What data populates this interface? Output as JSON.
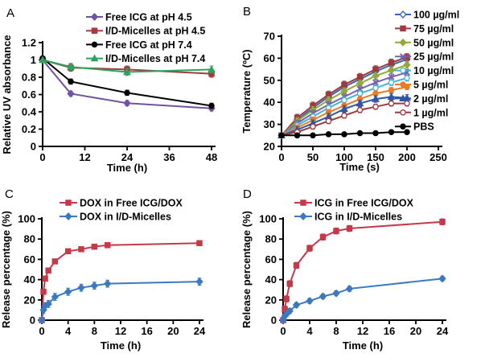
{
  "figure": {
    "background": "#ffffff",
    "panel_letters": [
      "A",
      "B",
      "C",
      "D"
    ]
  },
  "chart_data": [
    {
      "id": "A",
      "panel_letter": "A",
      "type": "line",
      "title": "",
      "xlabel": "Time (h)",
      "ylabel": "Relative UV absorbance",
      "xlim": [
        0,
        48
      ],
      "ylim": [
        0,
        1.2
      ],
      "xticks": [
        0,
        12,
        24,
        36,
        48
      ],
      "yticks": [
        0,
        0.2,
        0.4,
        0.6,
        0.8,
        1,
        1.2
      ],
      "grid": false,
      "legend_position": "top-right-inside",
      "x": [
        0,
        8,
        24,
        48
      ],
      "series": [
        {
          "name": "Free ICG at pH 4.5",
          "color": "#7252a3",
          "marker": "diamond",
          "open": false,
          "values": [
            1.0,
            0.61,
            0.5,
            0.44
          ],
          "error": 0.03
        },
        {
          "name": "I/D-Micelles at pH 4.5",
          "color": "#a23b40",
          "marker": "square",
          "open": false,
          "values": [
            1.0,
            0.91,
            0.89,
            0.84
          ],
          "error": 0.04
        },
        {
          "name": "Free ICG at pH 7.4",
          "color": "#000000",
          "marker": "circle",
          "open": false,
          "values": [
            1.02,
            0.75,
            0.62,
            0.47
          ],
          "error": 0.03
        },
        {
          "name": "I/D-Micelles at pH 7.4",
          "color": "#2ca25f",
          "marker": "triangle",
          "open": false,
          "values": [
            1.0,
            0.92,
            0.86,
            0.89
          ],
          "error": 0.04
        }
      ]
    },
    {
      "id": "B",
      "panel_letter": "B",
      "type": "line",
      "title": "",
      "xlabel": "Time (s)",
      "ylabel": "Temperature (ºC)",
      "xlim": [
        0,
        250
      ],
      "ylim": [
        20,
        70
      ],
      "xticks": [
        0,
        50,
        100,
        150,
        200,
        250
      ],
      "yticks": [
        20,
        30,
        40,
        50,
        60,
        70
      ],
      "grid": false,
      "legend_position": "right-outside",
      "x": [
        0,
        25,
        50,
        75,
        100,
        125,
        150,
        175,
        200
      ],
      "series": [
        {
          "name": "100 µg/ml",
          "color": "#3a67b1",
          "marker": "diamond",
          "open": true,
          "values": [
            25,
            32,
            37.5,
            42.5,
            47,
            50.5,
            54,
            57,
            59.5
          ],
          "error": 1.5
        },
        {
          "name": "75 µg/ml",
          "color": "#9d3a3e",
          "marker": "square",
          "open": false,
          "values": [
            25,
            33,
            38.5,
            43.5,
            48,
            51.5,
            55,
            58,
            60.5
          ],
          "error": 1.6
        },
        {
          "name": "50 µg/ml",
          "color": "#8fa93c",
          "marker": "diamond",
          "open": false,
          "values": [
            25,
            31.5,
            36.5,
            41,
            45,
            48.5,
            52,
            54.5,
            57
          ],
          "error": 1.6
        },
        {
          "name": "25 µg/ml",
          "color": "#7563a9",
          "marker": "x",
          "open": false,
          "values": [
            25,
            30.5,
            35,
            39,
            42.5,
            46,
            49,
            51.5,
            53.5
          ],
          "error": 1.4
        },
        {
          "name": "10 µg/ml",
          "color": "#47b1d7",
          "marker": "circle",
          "open": true,
          "values": [
            25,
            29.5,
            33.5,
            37.5,
            41,
            44,
            46.5,
            49,
            51
          ],
          "error": 1.4
        },
        {
          "name": "5 µg/ml",
          "color": "#ea7c27",
          "marker": "circle",
          "open": false,
          "values": [
            25,
            28.5,
            32,
            35.5,
            38.5,
            41.5,
            44,
            45.5,
            47
          ],
          "error": 1.3
        },
        {
          "name": "2 µg/ml",
          "color": "#2e56a6",
          "marker": "triangle",
          "open": false,
          "values": [
            25,
            27.5,
            30.5,
            33.5,
            37,
            39.5,
            41.5,
            42.5,
            42
          ],
          "error": 1.5
        },
        {
          "name": "1 µg/ml",
          "color": "#9d3a3e",
          "marker": "circle",
          "open": true,
          "values": [
            25,
            26.5,
            29,
            31.5,
            34,
            36.5,
            38,
            39.5,
            39.5
          ],
          "error": 1.2
        },
        {
          "name": "PBS",
          "color": "#000000",
          "marker": "circle",
          "open": false,
          "values": [
            25,
            25,
            25,
            25.5,
            25.5,
            26,
            26,
            26.5,
            26.5
          ],
          "error": 0.6
        }
      ]
    },
    {
      "id": "C",
      "panel_letter": "C",
      "type": "line",
      "title": "",
      "xlabel": "Time (h)",
      "ylabel": "Release percentage (%)",
      "xlim": [
        0,
        24
      ],
      "ylim": [
        0,
        100
      ],
      "xticks": [
        0,
        4,
        8,
        12,
        16,
        20,
        24
      ],
      "yticks": [
        0,
        20,
        40,
        60,
        80,
        100
      ],
      "grid": false,
      "legend_position": "top-inside",
      "x": [
        0,
        0.25,
        0.5,
        1,
        2,
        4,
        6,
        8,
        10,
        24
      ],
      "series": [
        {
          "name": "DOX in Free ICG/DOX",
          "color": "#c63948",
          "marker": "square",
          "open": false,
          "values": [
            0,
            28,
            41,
            49,
            58,
            68,
            70,
            72.5,
            74,
            76
          ],
          "error": 2
        },
        {
          "name": "DOX in I/D-Micelles",
          "color": "#3a79c0",
          "marker": "diamond",
          "open": false,
          "values": [
            0,
            10,
            14,
            16,
            23,
            28,
            32,
            34,
            36,
            38
          ],
          "error": 3.5
        }
      ]
    },
    {
      "id": "D",
      "panel_letter": "D",
      "type": "line",
      "title": "",
      "xlabel": "Time (h)",
      "ylabel": "Release percentage (%)",
      "xlim": [
        0,
        24
      ],
      "ylim": [
        0,
        100
      ],
      "xticks": [
        0,
        4,
        8,
        12,
        16,
        20,
        24
      ],
      "yticks": [
        0,
        20,
        40,
        60,
        80,
        100
      ],
      "grid": false,
      "legend_position": "top-inside",
      "x": [
        0,
        0.25,
        0.5,
        1,
        2,
        4,
        6,
        8,
        10,
        24
      ],
      "series": [
        {
          "name": "ICG in Free ICG/DOX",
          "color": "#c63948",
          "marker": "square",
          "open": false,
          "values": [
            0,
            11,
            21,
            36,
            54,
            71,
            82,
            88,
            90.5,
            97
          ],
          "error": 3
        },
        {
          "name": "ICG in I/D-Micelles",
          "color": "#3a79c0",
          "marker": "diamond",
          "open": false,
          "values": [
            0,
            4,
            6,
            9,
            15,
            19,
            23.5,
            26.5,
            31,
            41
          ],
          "error": 2.5
        }
      ]
    }
  ]
}
